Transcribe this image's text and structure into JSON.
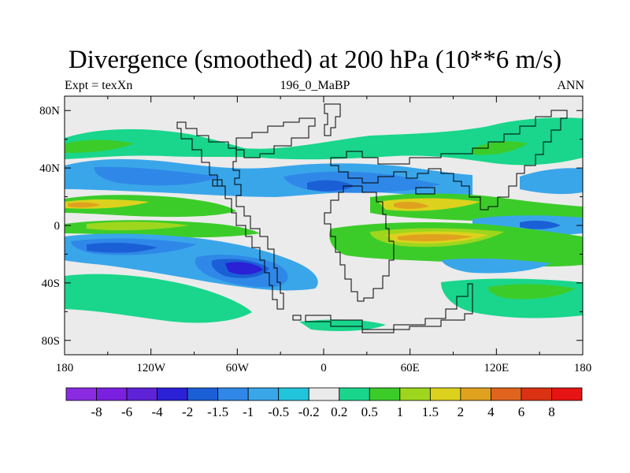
{
  "header": {
    "title": "Divergence (smoothed) at 200 hPa (10**6 m/s)",
    "left": "Expt = texXn",
    "center": "196_0_MaBP",
    "right": "ANN"
  },
  "axes": {
    "lat_labels": [
      "80N",
      "40N",
      "0",
      "40S",
      "80S"
    ],
    "lat_values": [
      80,
      40,
      0,
      -40,
      -80
    ],
    "lon_labels": [
      "180",
      "120W",
      "60W",
      "0",
      "60E",
      "120E",
      "180"
    ],
    "lon_values": [
      -180,
      -120,
      -60,
      0,
      60,
      120,
      180
    ],
    "lat_range": [
      -90,
      90
    ],
    "lon_range": [
      -180,
      180
    ]
  },
  "colorbar": {
    "labels": [
      "-8",
      "-6",
      "-4",
      "-2",
      "-1.5",
      "-1",
      "-0.5",
      "-0.2",
      "0.2",
      "0.5",
      "1",
      "1.5",
      "2",
      "4",
      "6",
      "8"
    ],
    "colors": [
      "#8a2be2",
      "#7b1fe0",
      "#5e23d6",
      "#2a20d6",
      "#1b5fd6",
      "#2f88e8",
      "#3aa6ea",
      "#22c4dc",
      "#ebebeb",
      "#19d68c",
      "#3ccc2a",
      "#9ed61e",
      "#dcd21e",
      "#e0a21e",
      "#e0641e",
      "#dc3214",
      "#e61414"
    ]
  },
  "chart_data": {
    "type": "heatmap",
    "title": "Divergence (smoothed) at 200 hPa (10**6 m/s)",
    "subtitle_left": "Expt = texXn",
    "subtitle_center": "196_0_MaBP",
    "subtitle_right": "ANN",
    "x_range": [
      -180,
      180
    ],
    "y_range": [
      -90,
      90
    ],
    "levels": [
      -8,
      -6,
      -4,
      -2,
      -1.5,
      -1,
      -0.5,
      -0.2,
      0.2,
      0.5,
      1,
      1.5,
      2,
      4,
      6,
      8
    ],
    "features": [
      {
        "lon": [
          -180,
          -100
        ],
        "lat": [
          40,
          55
        ],
        "level": 0.5
      },
      {
        "lon": [
          -180,
          -130
        ],
        "lat": [
          45,
          52
        ],
        "level": 1
      },
      {
        "lon": [
          -90,
          -40
        ],
        "lat": [
          32,
          42
        ],
        "level": -0.5
      },
      {
        "lon": [
          -180,
          -10
        ],
        "lat": [
          28,
          42
        ],
        "level": -0.5
      },
      {
        "lon": [
          -140,
          -60
        ],
        "lat": [
          30,
          40
        ],
        "level": -1
      },
      {
        "lon": [
          -20,
          80
        ],
        "lat": [
          28,
          40
        ],
        "level": -1
      },
      {
        "lon": [
          -5,
          20
        ],
        "lat": [
          30,
          38
        ],
        "level": -1.5
      },
      {
        "lon": [
          140,
          180
        ],
        "lat": [
          25,
          40
        ],
        "level": -0.5
      },
      {
        "lon": [
          -180,
          -90
        ],
        "lat": [
          8,
          18
        ],
        "level": 1.5
      },
      {
        "lon": [
          -175,
          -155
        ],
        "lat": [
          10,
          15
        ],
        "level": 2
      },
      {
        "lon": [
          35,
          110
        ],
        "lat": [
          5,
          18
        ],
        "level": 1.5
      },
      {
        "lon": [
          40,
          60
        ],
        "lat": [
          8,
          14
        ],
        "level": 2
      },
      {
        "lon": [
          -180,
          -10
        ],
        "lat": [
          -8,
          2
        ],
        "level": 1
      },
      {
        "lon": [
          -160,
          -120
        ],
        "lat": [
          -6,
          0
        ],
        "level": 1.5
      },
      {
        "lon": [
          5,
          180
        ],
        "lat": [
          -18,
          -4
        ],
        "level": 1
      },
      {
        "lon": [
          50,
          130
        ],
        "lat": [
          -14,
          -6
        ],
        "level": 2
      },
      {
        "lon": [
          -180,
          10
        ],
        "lat": [
          -25,
          -10
        ],
        "level": -1
      },
      {
        "lon": [
          -160,
          -110
        ],
        "lat": [
          -18,
          -12
        ],
        "level": -2
      },
      {
        "lon": [
          -80,
          -40
        ],
        "lat": [
          -35,
          -20
        ],
        "level": -2
      },
      {
        "lon": [
          130,
          180
        ],
        "lat": [
          -8,
          2
        ],
        "level": -1
      },
      {
        "lon": [
          145,
          165
        ],
        "lat": [
          -3,
          0
        ],
        "level": -2
      },
      {
        "lon": [
          -180,
          -10
        ],
        "lat": [
          -50,
          -35
        ],
        "level": 0.5
      },
      {
        "lon": [
          110,
          170
        ],
        "lat": [
          -50,
          -38
        ],
        "level": 1
      }
    ]
  }
}
